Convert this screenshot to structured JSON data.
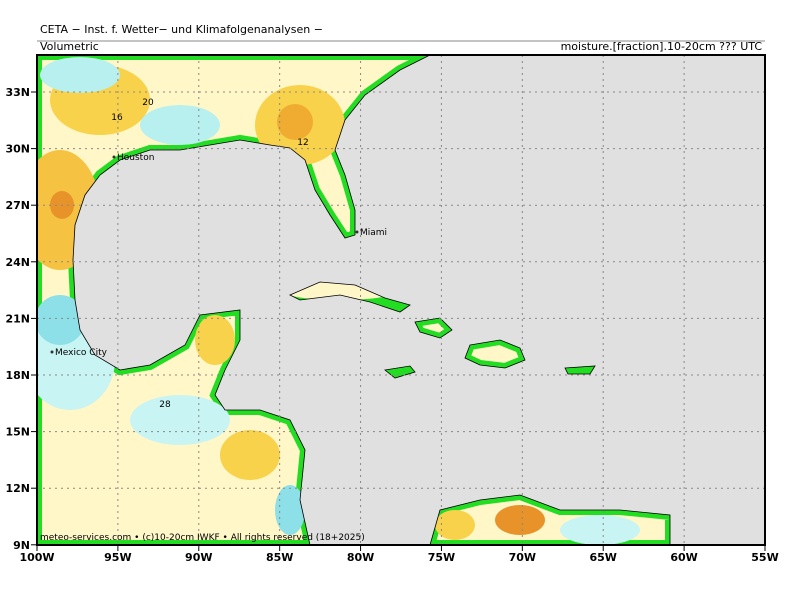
{
  "header": {
    "title": "CETA − Inst. f. Wetter− und Klimafolgenanalysen −",
    "left": "Volumetric",
    "right": "moisture.[fraction].10-20cm ??? UTC"
  },
  "axes": {
    "lat_labels": [
      "33N",
      "30N",
      "27N",
      "24N",
      "21N",
      "18N",
      "15N",
      "12N",
      "9N"
    ],
    "lon_labels": [
      "100W",
      "95W",
      "90W",
      "85W",
      "80W",
      "75W",
      "70W",
      "65W",
      "60W",
      "55W"
    ]
  },
  "cities": [
    "Houston",
    "Miami",
    "Mexico City"
  ],
  "contour_labels": [
    "16",
    "20",
    "12",
    "28"
  ],
  "footer": "meteo-services.com • (c)10-20cm IWKF • All rights reserved (18+2025)"
}
